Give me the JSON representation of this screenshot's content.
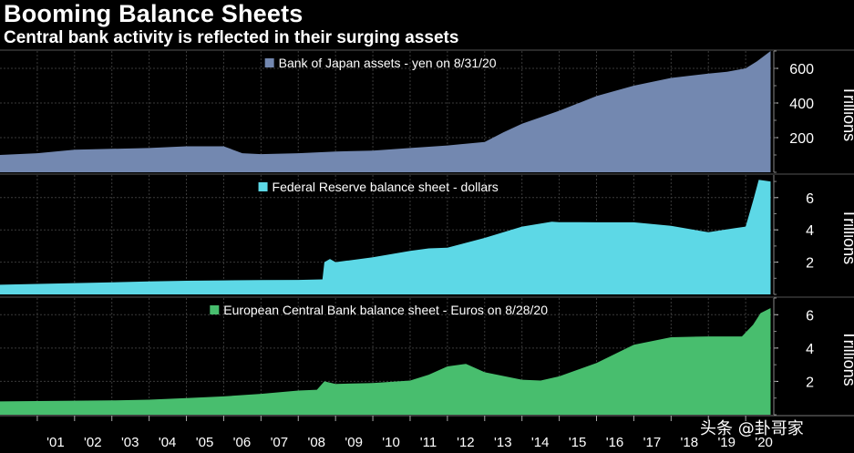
{
  "header": {
    "title": "Booming Balance Sheets",
    "subtitle": "Central bank activity is reflected in their surging assets"
  },
  "watermark": "头条 @卦哥家",
  "colors": {
    "background": "#000000",
    "boj": "#7388b0",
    "fed": "#5dd8e6",
    "ecb": "#48be6e",
    "grid": "#3a3a3a",
    "text": "#ffffff"
  },
  "chart_data": [
    {
      "type": "area",
      "legend": "Bank of Japan assets - yen on 8/31/20",
      "unit_label": "Trillions",
      "y_ticks": [
        200,
        400,
        600
      ],
      "ylim": [
        0,
        700
      ],
      "x_ticks": [
        "'01",
        "'02",
        "'03",
        "'04",
        "'05",
        "'06",
        "'07",
        "'08",
        "'09",
        "'10",
        "'11",
        "'12",
        "'13",
        "'14",
        "'15",
        "'16",
        "'17",
        "'18",
        "'19",
        "'20"
      ],
      "x": [
        2000.0,
        2001.0,
        2002.0,
        2003.0,
        2004.0,
        2005.0,
        2006.0,
        2006.5,
        2007.0,
        2008.0,
        2009.0,
        2010.0,
        2011.0,
        2012.0,
        2013.0,
        2013.5,
        2014.0,
        2015.0,
        2016.0,
        2017.0,
        2018.0,
        2019.0,
        2019.5,
        2020.0,
        2020.3,
        2020.67
      ],
      "values": [
        100,
        110,
        130,
        135,
        140,
        150,
        150,
        110,
        105,
        110,
        120,
        125,
        140,
        155,
        175,
        230,
        280,
        355,
        440,
        500,
        545,
        570,
        580,
        600,
        640,
        700
      ]
    },
    {
      "type": "area",
      "legend": "Federal Reserve balance sheet - dollars",
      "unit_label": "Trillions",
      "y_ticks": [
        2,
        4,
        6
      ],
      "ylim": [
        0,
        7.4
      ],
      "x_ticks": [
        "'01",
        "'02",
        "'03",
        "'04",
        "'05",
        "'06",
        "'07",
        "'08",
        "'09",
        "'10",
        "'11",
        "'12",
        "'13",
        "'14",
        "'15",
        "'16",
        "'17",
        "'18",
        "'19",
        "'20"
      ],
      "x": [
        2000.0,
        2001.0,
        2002.0,
        2003.0,
        2004.0,
        2005.0,
        2006.0,
        2007.0,
        2008.0,
        2008.65,
        2008.7,
        2008.85,
        2009.0,
        2010.0,
        2011.0,
        2011.5,
        2012.0,
        2013.0,
        2014.0,
        2014.8,
        2015.0,
        2016.0,
        2017.0,
        2018.0,
        2019.0,
        2019.7,
        2020.0,
        2020.2,
        2020.35,
        2020.67
      ],
      "values": [
        0.6,
        0.65,
        0.7,
        0.75,
        0.8,
        0.85,
        0.87,
        0.89,
        0.9,
        0.93,
        2.0,
        2.2,
        2.0,
        2.3,
        2.7,
        2.85,
        2.9,
        3.5,
        4.2,
        4.5,
        4.48,
        4.47,
        4.47,
        4.25,
        3.85,
        4.1,
        4.2,
        5.8,
        7.1,
        7.0
      ]
    },
    {
      "type": "area",
      "legend": "European Central Bank balance sheet - Euros on 8/28/20",
      "unit_label": "Trillions",
      "y_ticks": [
        2,
        4,
        6
      ],
      "ylim": [
        0,
        7
      ],
      "x_ticks": [
        "'01",
        "'02",
        "'03",
        "'04",
        "'05",
        "'06",
        "'07",
        "'08",
        "'09",
        "'10",
        "'11",
        "'12",
        "'13",
        "'14",
        "'15",
        "'16",
        "'17",
        "'18",
        "'19",
        "'20"
      ],
      "x": [
        2000.0,
        2001.0,
        2002.0,
        2003.0,
        2004.0,
        2005.0,
        2006.0,
        2007.0,
        2008.0,
        2008.5,
        2008.7,
        2009.0,
        2010.0,
        2011.0,
        2011.5,
        2012.0,
        2012.5,
        2013.0,
        2014.0,
        2014.5,
        2015.0,
        2016.0,
        2017.0,
        2018.0,
        2019.0,
        2019.9,
        2020.2,
        2020.4,
        2020.67
      ],
      "values": [
        0.8,
        0.82,
        0.84,
        0.86,
        0.9,
        1.0,
        1.1,
        1.25,
        1.45,
        1.5,
        2.0,
        1.85,
        1.9,
        2.05,
        2.4,
        2.9,
        3.05,
        2.55,
        2.1,
        2.05,
        2.3,
        3.1,
        4.2,
        4.65,
        4.7,
        4.7,
        5.4,
        6.1,
        6.4
      ]
    }
  ]
}
